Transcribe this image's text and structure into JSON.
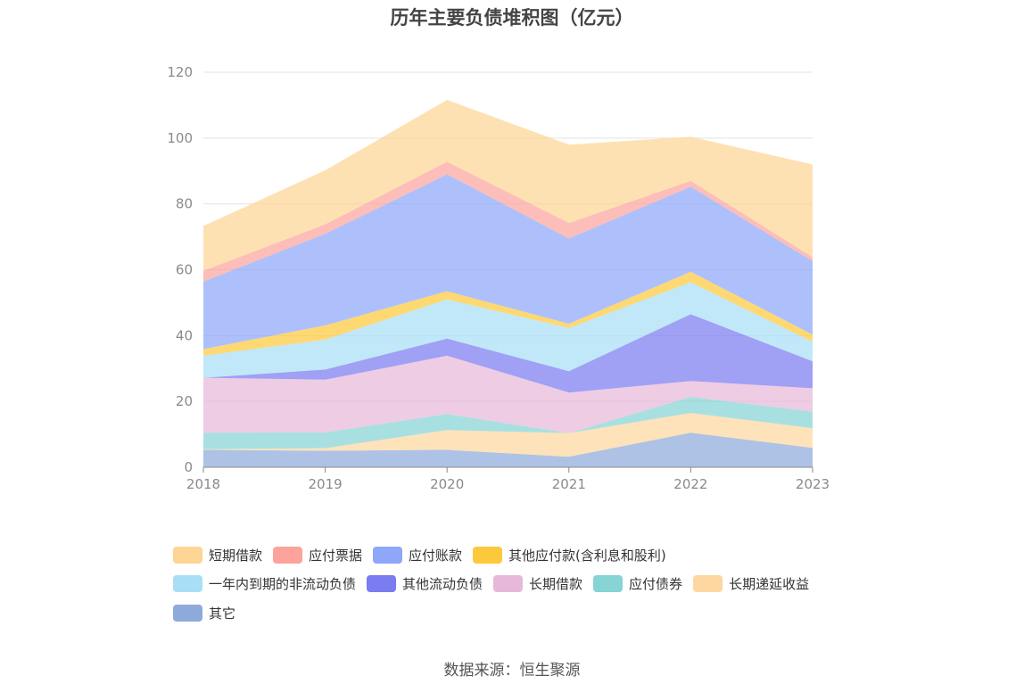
{
  "chart_data": {
    "type": "area",
    "stacked": true,
    "title": "历年主要负债堆积图（亿元）",
    "xlabel": "",
    "ylabel": "",
    "categories": [
      "2018",
      "2019",
      "2020",
      "2021",
      "2022",
      "2023"
    ],
    "ylim": [
      0,
      120
    ],
    "yticks": [
      0,
      20,
      40,
      60,
      80,
      100,
      120
    ],
    "grid": true,
    "legend_position": "bottom",
    "series": [
      {
        "name": "其它",
        "color": "#8eaadb",
        "values": [
          5.3,
          5.0,
          5.3,
          3.2,
          10.5,
          5.9
        ]
      },
      {
        "name": "长期递延收益",
        "color": "#fdd7a0",
        "values": [
          0.2,
          0.8,
          6.0,
          7.2,
          6.0,
          6.0
        ]
      },
      {
        "name": "应付债券",
        "color": "#86d4d6",
        "values": [
          5.0,
          4.8,
          4.9,
          0.0,
          4.9,
          5.0
        ]
      },
      {
        "name": "长期借款",
        "color": "#e8b8da",
        "values": [
          16.7,
          16.0,
          17.7,
          12.3,
          4.8,
          7.1
        ]
      },
      {
        "name": "其他流动负债",
        "color": "#7b7cf0",
        "values": [
          0.0,
          3.1,
          5.2,
          6.5,
          20.3,
          8.2
        ]
      },
      {
        "name": "一年内到期的非流动负债",
        "color": "#a8dff7",
        "values": [
          6.7,
          9.1,
          11.9,
          13.1,
          9.7,
          5.9
        ]
      },
      {
        "name": "其他应付款(含利息和股利)",
        "color": "#fdc93c",
        "values": [
          2.0,
          4.3,
          2.5,
          1.3,
          3.2,
          2.2
        ]
      },
      {
        "name": "应付账款",
        "color": "#8ea7fa",
        "values": [
          20.5,
          27.8,
          35.5,
          25.9,
          25.8,
          22.3
        ]
      },
      {
        "name": "应付票据",
        "color": "#fca39c",
        "values": [
          3.3,
          2.9,
          3.8,
          4.7,
          1.8,
          1.2
        ]
      },
      {
        "name": "短期借款",
        "color": "#fdd594",
        "values": [
          13.6,
          16.4,
          18.8,
          23.8,
          13.4,
          28.2
        ]
      }
    ]
  },
  "legend_rows": [
    [
      {
        "label": "短期借款",
        "color": "#fdd594"
      },
      {
        "label": "应付票据",
        "color": "#fca39c"
      },
      {
        "label": "应付账款",
        "color": "#8ea7fa"
      },
      {
        "label": "其他应付款(含利息和股利)",
        "color": "#fdc93c"
      }
    ],
    [
      {
        "label": "一年内到期的非流动负债",
        "color": "#a8dff7"
      },
      {
        "label": "其他流动负债",
        "color": "#7b7cf0"
      },
      {
        "label": "长期借款",
        "color": "#e8b8da"
      },
      {
        "label": "应付债券",
        "color": "#86d4d6"
      },
      {
        "label": "长期递延收益",
        "color": "#fdd7a0"
      }
    ],
    [
      {
        "label": "其它",
        "color": "#8eaadb"
      }
    ]
  ],
  "source": "数据来源：恒生聚源"
}
